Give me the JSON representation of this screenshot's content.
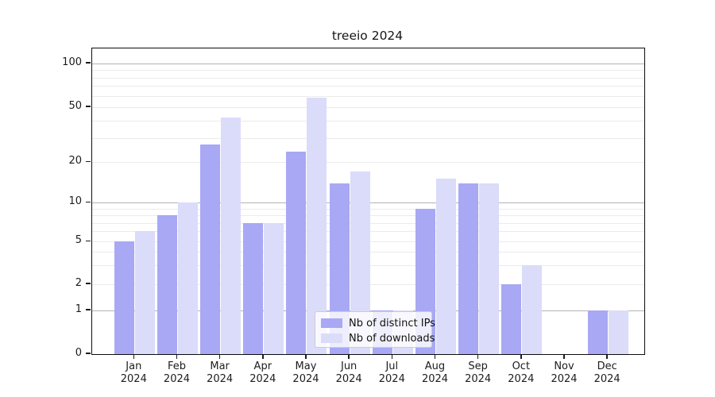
{
  "figure": {
    "title": "treeio 2024"
  },
  "colors": {
    "ips_bar": "#a8a8f5",
    "downloads_bar": "#dbdbfa",
    "grid_major": "#b3b3b3",
    "grid_minor": "#ebebeb",
    "spine": "#0d0d0d",
    "text": "#1c1c1c",
    "legend_border": "#cccccc"
  },
  "legend": {
    "items": [
      {
        "label": "Nb of distinct IPs",
        "series": "ips",
        "color": "#a8a8f5"
      },
      {
        "label": "Nb of downloads",
        "series": "downloads",
        "color": "#dbdbfa"
      }
    ]
  },
  "y_axis": {
    "tick_labels": [
      "100",
      "50",
      "20",
      "10",
      "5",
      "2",
      "1",
      "0"
    ],
    "tick_values": [
      100,
      50,
      20,
      10,
      5,
      2,
      1,
      0
    ],
    "major_gridline_values": [
      1,
      10,
      100
    ],
    "minor_gridline_values": [
      2,
      3,
      4,
      5,
      6,
      7,
      8,
      9,
      20,
      30,
      40,
      50,
      60,
      70,
      80,
      90
    ]
  },
  "x_axis": {
    "months": [
      "Jan",
      "Feb",
      "Mar",
      "Apr",
      "May",
      "Jun",
      "Jul",
      "Aug",
      "Sep",
      "Oct",
      "Nov",
      "Dec"
    ],
    "year": "2024"
  },
  "chart_data": {
    "type": "bar",
    "title": "treeio 2024",
    "categories": [
      "Jan 2024",
      "Feb 2024",
      "Mar 2024",
      "Apr 2024",
      "May 2024",
      "Jun 2024",
      "Jul 2024",
      "Aug 2024",
      "Sep 2024",
      "Oct 2024",
      "Nov 2024",
      "Dec 2024"
    ],
    "series": [
      {
        "name": "Nb of distinct IPs",
        "values": [
          5,
          8,
          27,
          7,
          24,
          14,
          1,
          9,
          14,
          2,
          0,
          1
        ]
      },
      {
        "name": "Nb of downloads",
        "values": [
          6,
          10,
          42,
          7,
          58,
          17,
          1,
          15,
          14,
          3,
          0,
          1
        ]
      }
    ],
    "xlabel": "",
    "ylabel": "",
    "yscale": "symlog",
    "yticks": [
      0,
      1,
      2,
      5,
      10,
      20,
      50,
      100
    ],
    "ylim": [
      0,
      135
    ],
    "grid": "horizontal",
    "legend_position": "inside-bottom-center"
  }
}
